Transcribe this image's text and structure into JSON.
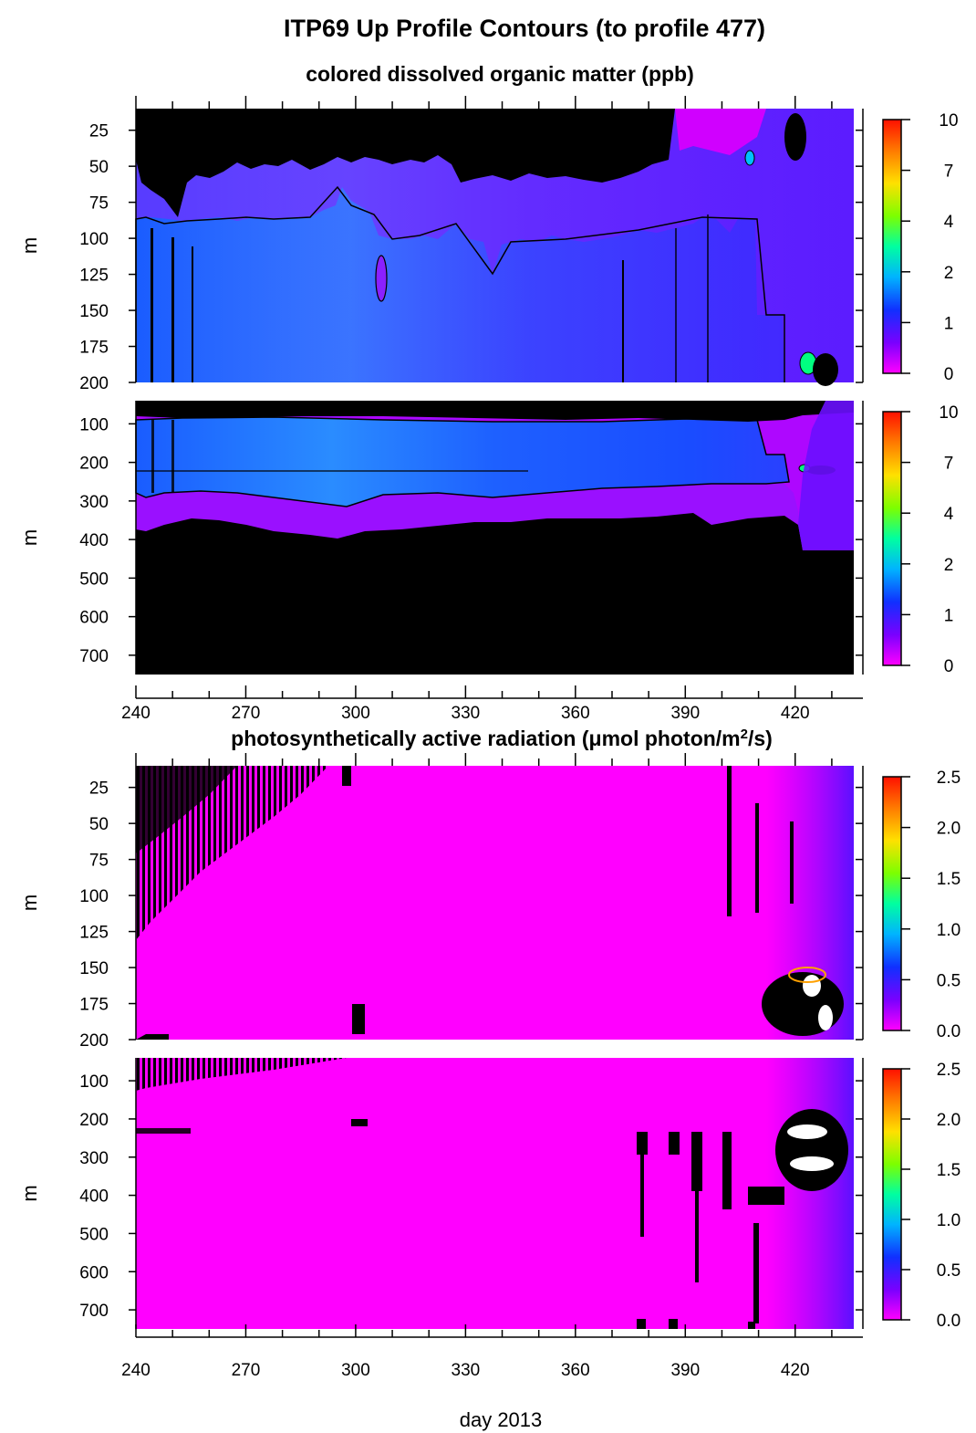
{
  "figure": {
    "title": "ITP69 Up Profile Contours (to profile 477)",
    "xlabel": "day 2013"
  },
  "colors": {
    "background_no_data": "#000000",
    "contour_line": "#000000",
    "colormap": [
      "#ff00ff",
      "#7a00ff",
      "#1030ff",
      "#00b4ff",
      "#00ffa0",
      "#7cff00",
      "#ffe000",
      "#ff7800",
      "#ff1000"
    ]
  },
  "chart_data": [
    {
      "type": "heatmap",
      "section_title": "colored dissolved organic matter (ppb)",
      "ylabel": "m",
      "x_ticks": [
        240,
        270,
        300,
        330,
        360,
        390,
        420
      ],
      "xlim": [
        240,
        436
      ],
      "panels": [
        {
          "ylim": [
            10,
            200
          ],
          "y_ticks": [
            25,
            50,
            75,
            100,
            125,
            150,
            175,
            200
          ],
          "y_tick_labels": [
            "25",
            "50",
            "75",
            "100",
            "125",
            "150",
            "175",
            "200"
          ],
          "colorbar": {
            "range": [
              0,
              10
            ],
            "ticks": [
              "10",
              "7",
              "4",
              "2",
              "1",
              "0"
            ]
          }
        },
        {
          "ylim": [
            40,
            750
          ],
          "y_ticks": [
            100,
            200,
            300,
            400,
            500,
            600,
            700
          ],
          "y_tick_labels": [
            "100",
            "200",
            "300",
            "400",
            "500",
            "600",
            "700"
          ],
          "colorbar": {
            "range": [
              0,
              10
            ],
            "ticks": [
              "10",
              "7",
              "4",
              "2",
              "1",
              "0"
            ]
          }
        }
      ]
    },
    {
      "type": "heatmap",
      "section_title_text": "photosynthetically active radiation (μmol photon/m",
      "section_title_sup": "2",
      "section_title_end": "/s)",
      "ylabel": "m",
      "x_ticks": [
        240,
        270,
        300,
        330,
        360,
        390,
        420
      ],
      "xlim": [
        240,
        436
      ],
      "panels": [
        {
          "ylim": [
            10,
            200
          ],
          "y_ticks": [
            25,
            50,
            75,
            100,
            125,
            150,
            175,
            200
          ],
          "y_tick_labels": [
            "25",
            "50",
            "75",
            "100",
            "125",
            "150",
            "175",
            "200"
          ],
          "colorbar": {
            "range": [
              0,
              2.5
            ],
            "ticks": [
              "2.5",
              "2.0",
              "1.5",
              "1.0",
              "0.5",
              "0.0"
            ]
          }
        },
        {
          "ylim": [
            40,
            750
          ],
          "y_ticks": [
            100,
            200,
            300,
            400,
            500,
            600,
            700
          ],
          "y_tick_labels": [
            "100",
            "200",
            "300",
            "400",
            "500",
            "600",
            "700"
          ],
          "colorbar": {
            "range": [
              0,
              2.5
            ],
            "ticks": [
              "2.5",
              "2.0",
              "1.5",
              "1.0",
              "0.5",
              "0.0"
            ]
          }
        }
      ]
    }
  ]
}
